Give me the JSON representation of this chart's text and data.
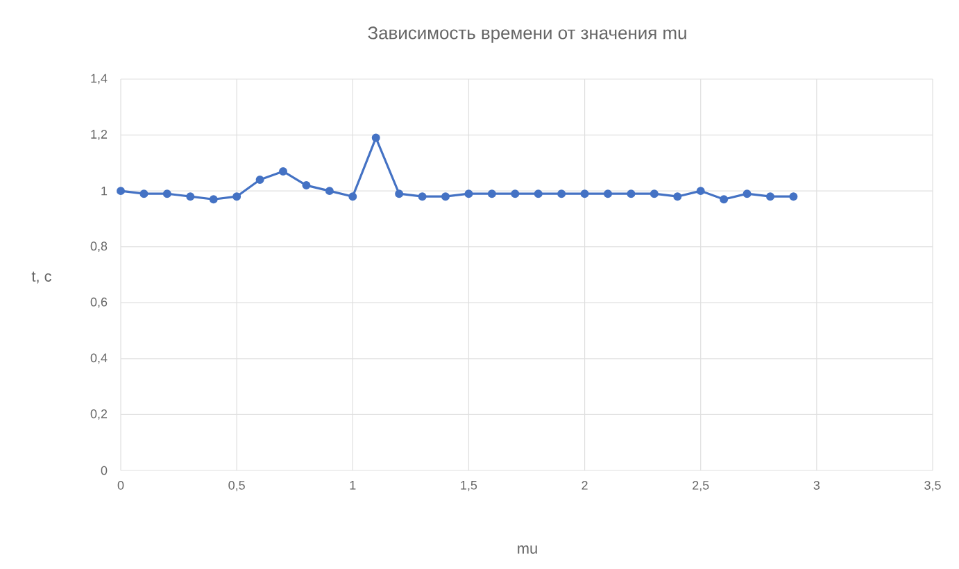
{
  "chart_data": {
    "type": "line",
    "title": "Зависимость времени от значения mu",
    "xlabel": "mu",
    "ylabel": "t, c",
    "x": [
      0,
      0.1,
      0.2,
      0.3,
      0.4,
      0.5,
      0.6,
      0.7,
      0.8,
      0.9,
      1.0,
      1.1,
      1.2,
      1.3,
      1.4,
      1.5,
      1.6,
      1.7,
      1.8,
      1.9,
      2.0,
      2.1,
      2.2,
      2.3,
      2.4,
      2.5,
      2.6,
      2.7,
      2.8,
      2.9
    ],
    "series": [
      {
        "color": "#4472c4",
        "values": [
          1.0,
          0.99,
          0.99,
          0.98,
          0.97,
          0.98,
          1.04,
          1.07,
          1.02,
          1.0,
          0.98,
          1.19,
          0.99,
          0.98,
          0.98,
          0.99,
          0.99,
          0.99,
          0.99,
          0.99,
          0.99,
          0.99,
          0.99,
          0.99,
          0.98,
          1.0,
          0.97,
          0.99,
          0.98,
          0.98
        ]
      }
    ],
    "xlim": [
      0,
      3.5
    ],
    "ylim": [
      0,
      1.4
    ],
    "xticks": [
      0,
      {
        "value": 0.5,
        "label": "0,5"
      },
      1,
      {
        "value": 1.5,
        "label": "1,5"
      },
      2,
      {
        "value": 2.5,
        "label": "2,5"
      },
      3,
      {
        "value": 3.5,
        "label": "3,5"
      }
    ],
    "yticks": [
      0,
      {
        "value": 0.2,
        "label": "0,2"
      },
      {
        "value": 0.4,
        "label": "0,4"
      },
      {
        "value": 0.6,
        "label": "0,6"
      },
      {
        "value": 0.8,
        "label": "0,8"
      },
      1,
      {
        "value": 1.2,
        "label": "1,2"
      },
      {
        "value": 1.4,
        "label": "1,4"
      }
    ],
    "grid": true,
    "marker": "circle",
    "line_style": "solid",
    "legend": false
  }
}
